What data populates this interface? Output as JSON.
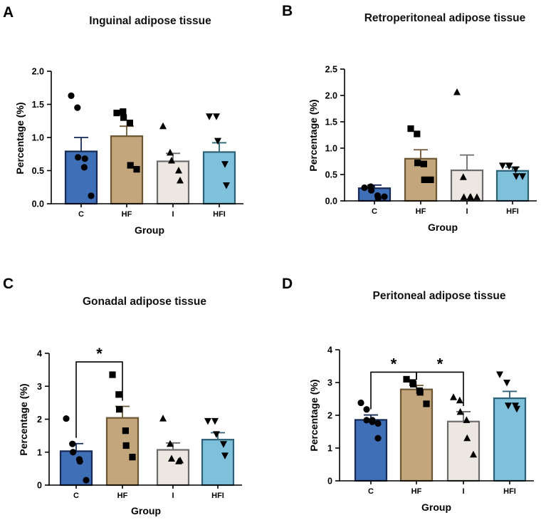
{
  "colors": {
    "C": "#3f6fb7",
    "HF": "#c4a67c",
    "I": "#ece7e1",
    "HFI": "#7fc0da",
    "C_edge": "#162a55",
    "HF_edge": "#6d5633",
    "I_edge": "#6b6b6b",
    "HFI_edge": "#2e6175"
  },
  "chart_data": [
    {
      "panel": "A",
      "type": "bar",
      "title": "Inguinal adipose tissue",
      "xlabel": "Group",
      "ylabel": "Percentage (%)",
      "categories": [
        "C",
        "HF",
        "I",
        "HFI"
      ],
      "ylim": [
        0,
        2.0
      ],
      "yticks": [
        "0.0",
        "0.5",
        "1.0",
        "1.5",
        "2.0"
      ],
      "ytick_values": [
        0,
        0.5,
        1.0,
        1.5,
        2.0
      ],
      "values": [
        0.79,
        1.02,
        0.64,
        0.78
      ],
      "errors": [
        0.21,
        0.15,
        0.12,
        0.14
      ],
      "points": [
        [
          1.63,
          1.45,
          0.7,
          0.55,
          0.68,
          0.12
        ],
        [
          1.37,
          1.39,
          1.3,
          1.22,
          0.58,
          0.52
        ],
        [
          1.17,
          0.77,
          0.65,
          0.5,
          0.35
        ],
        [
          1.32,
          1.32,
          0.95,
          0.6,
          0.28
        ]
      ],
      "markers": [
        "circle",
        "square",
        "triangle",
        "triangle-down"
      ],
      "significance": []
    },
    {
      "panel": "B",
      "type": "bar",
      "title": "Retroperitoneal adipose tissue",
      "xlabel": "Group",
      "ylabel": "Percentage (%)",
      "categories": [
        "C",
        "HF",
        "I",
        "HFI"
      ],
      "ylim": [
        0,
        2.5
      ],
      "yticks": [
        "0.0",
        "0.5",
        "1.0",
        "1.5",
        "2.0",
        "2.5"
      ],
      "ytick_values": [
        0,
        0.5,
        1.0,
        1.5,
        2.0,
        2.5
      ],
      "values": [
        0.24,
        0.8,
        0.58,
        0.57
      ],
      "errors": [
        0.06,
        0.17,
        0.29,
        0.07
      ],
      "points": [
        [
          0.25,
          0.27,
          0.2,
          0.1,
          0.05,
          0.08
        ],
        [
          1.37,
          1.27,
          0.72,
          0.7,
          0.4,
          0.4
        ],
        [
          2.06,
          0.45,
          0.07,
          0.07,
          0.07,
          0.07
        ],
        [
          0.67,
          0.67,
          0.67,
          0.6,
          0.47,
          0.47
        ]
      ],
      "markers": [
        "circle",
        "square",
        "triangle",
        "triangle-down"
      ],
      "significance": []
    },
    {
      "panel": "C",
      "type": "bar",
      "title": "Gonadal adipose tissue",
      "xlabel": "Group",
      "ylabel": "Percentage (%)",
      "categories": [
        "C",
        "HF",
        "I",
        "HFI"
      ],
      "ylim": [
        0,
        4
      ],
      "yticks": [
        "0",
        "1",
        "2",
        "3",
        "4"
      ],
      "ytick_values": [
        0,
        1,
        2,
        3,
        4
      ],
      "values": [
        1.03,
        2.04,
        1.07,
        1.38
      ],
      "errors": [
        0.23,
        0.35,
        0.21,
        0.21
      ],
      "points": [
        [
          2.02,
          1.25,
          1.0,
          0.78,
          0.72,
          0.15
        ],
        [
          3.35,
          2.75,
          2.3,
          1.65,
          1.2,
          0.85
        ],
        [
          2.02,
          1.25,
          0.8,
          0.72,
          0.75
        ],
        [
          1.95,
          1.95,
          1.55,
          1.25,
          0.9
        ]
      ],
      "markers": [
        "circle",
        "square",
        "triangle",
        "triangle-down"
      ],
      "significance": [
        {
          "from": 0,
          "to": 1,
          "label": "*"
        }
      ]
    },
    {
      "panel": "D",
      "type": "bar",
      "title": "Peritoneal adipose tissue",
      "xlabel": "Group",
      "ylabel": "Percentage (%)",
      "categories": [
        "C",
        "HF",
        "I",
        "HFI"
      ],
      "ylim": [
        0,
        4
      ],
      "yticks": [
        "0",
        "1",
        "2",
        "3",
        "4"
      ],
      "ytick_values": [
        0,
        1,
        2,
        3,
        4
      ],
      "values": [
        1.86,
        2.79,
        1.81,
        2.52
      ],
      "errors": [
        0.15,
        0.12,
        0.3,
        0.21
      ],
      "points": [
        [
          2.38,
          2.18,
          1.85,
          1.8,
          1.85,
          1.75,
          1.3
        ],
        [
          3.1,
          3.0,
          2.95,
          2.75,
          2.7,
          2.35
        ],
        [
          2.55,
          2.45,
          2.1,
          1.85,
          1.3,
          0.8
        ],
        [
          3.25,
          3.0,
          2.3,
          2.3,
          2.2
        ]
      ],
      "markers": [
        "circle",
        "square",
        "triangle",
        "triangle-down"
      ],
      "significance": [
        {
          "from": 0,
          "to": 1,
          "label": "*"
        },
        {
          "from": 1,
          "to": 2,
          "label": "*"
        }
      ]
    }
  ]
}
